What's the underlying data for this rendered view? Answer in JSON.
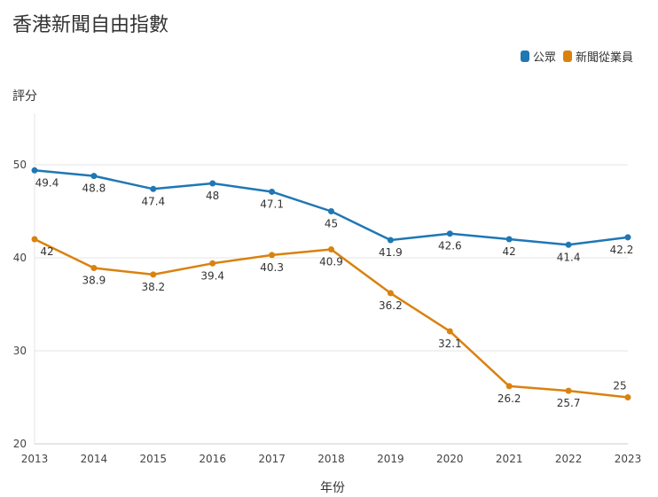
{
  "chart_data": {
    "type": "line",
    "title": "香港新聞自由指數",
    "xlabel": "年份",
    "ylabel": "評分",
    "ylim": [
      20,
      55
    ],
    "yticks": [
      "20",
      "30",
      "40",
      "50"
    ],
    "categories": [
      "2013",
      "2014",
      "2015",
      "2016",
      "2017",
      "2018",
      "2019",
      "2020",
      "2021",
      "2022",
      "2023"
    ],
    "series": [
      {
        "name": "公眾",
        "color": "#1f77b4",
        "values": [
          49.4,
          48.8,
          47.4,
          48,
          47.1,
          45,
          41.9,
          42.6,
          42,
          41.4,
          42.2
        ],
        "labels": [
          "49.4",
          "48.8",
          "47.4",
          "48",
          "47.1",
          "45",
          "41.9",
          "42.6",
          "42",
          "41.4",
          "42.2"
        ]
      },
      {
        "name": "新聞從業員",
        "color": "#d9820f",
        "values": [
          42,
          38.9,
          38.2,
          39.4,
          40.3,
          40.9,
          36.2,
          32.1,
          26.2,
          25.7,
          25
        ],
        "labels": [
          "42",
          "38.9",
          "38.2",
          "39.4",
          "40.3",
          "40.9",
          "36.2",
          "32.1",
          "26.2",
          "25.7",
          "25"
        ]
      }
    ],
    "grid": true,
    "legend": "top-right"
  }
}
